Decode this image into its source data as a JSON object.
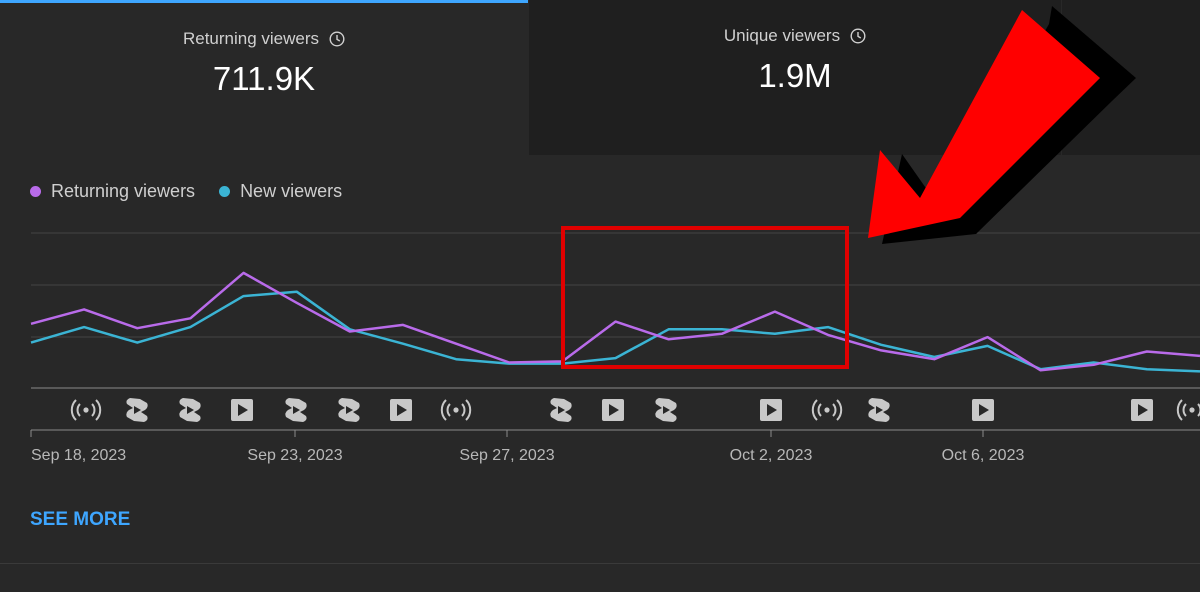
{
  "tabs": [
    {
      "title": "Returning viewers",
      "value": "711.9K"
    },
    {
      "title": "Unique viewers",
      "value": "1.9M"
    }
  ],
  "legend": [
    {
      "label": "Returning viewers",
      "color": "#b96bea"
    },
    {
      "label": "New viewers",
      "color": "#3bb4d4"
    }
  ],
  "see_more": "SEE MORE",
  "content_icons": [
    "live-icon",
    "short-icon",
    "short-icon",
    "video-icon",
    "short-icon",
    "short-icon",
    "video-icon",
    "live-icon",
    "short-icon",
    "video-icon",
    "short-icon",
    "video-icon",
    "live-icon",
    "short-icon",
    "video-icon",
    "video-icon",
    "live-icon"
  ],
  "colors": {
    "accent": "#3ea6ff",
    "highlight_box": "#e00000",
    "arrow": "#ff0000"
  },
  "chart_data": {
    "type": "line",
    "x_tick_labels": [
      "Sep 18, 2023",
      "Sep 23, 2023",
      "Sep 27, 2023",
      "Oct 2, 2023",
      "Oct 6, 2023"
    ],
    "series": [
      {
        "name": "Returning viewers",
        "color": "#b96bea",
        "values": [
          2.9,
          3.55,
          2.7,
          3.15,
          5.2,
          3.85,
          2.55,
          2.85,
          2.0,
          1.15,
          1.2,
          3.0,
          2.2,
          2.45,
          3.45,
          2.4,
          1.7,
          1.3,
          2.3,
          0.8,
          1.05,
          1.65,
          1.45
        ]
      },
      {
        "name": "New viewers",
        "color": "#3bb4d4",
        "values": [
          2.05,
          2.75,
          2.05,
          2.75,
          4.15,
          4.35,
          2.65,
          2.0,
          1.3,
          1.1,
          1.1,
          1.35,
          2.65,
          2.65,
          2.45,
          2.75,
          1.95,
          1.4,
          1.9,
          0.85,
          1.15,
          0.85,
          0.75
        ]
      }
    ],
    "ylim": [
      0,
      7
    ],
    "grid": true,
    "legend_position": "top-left"
  }
}
